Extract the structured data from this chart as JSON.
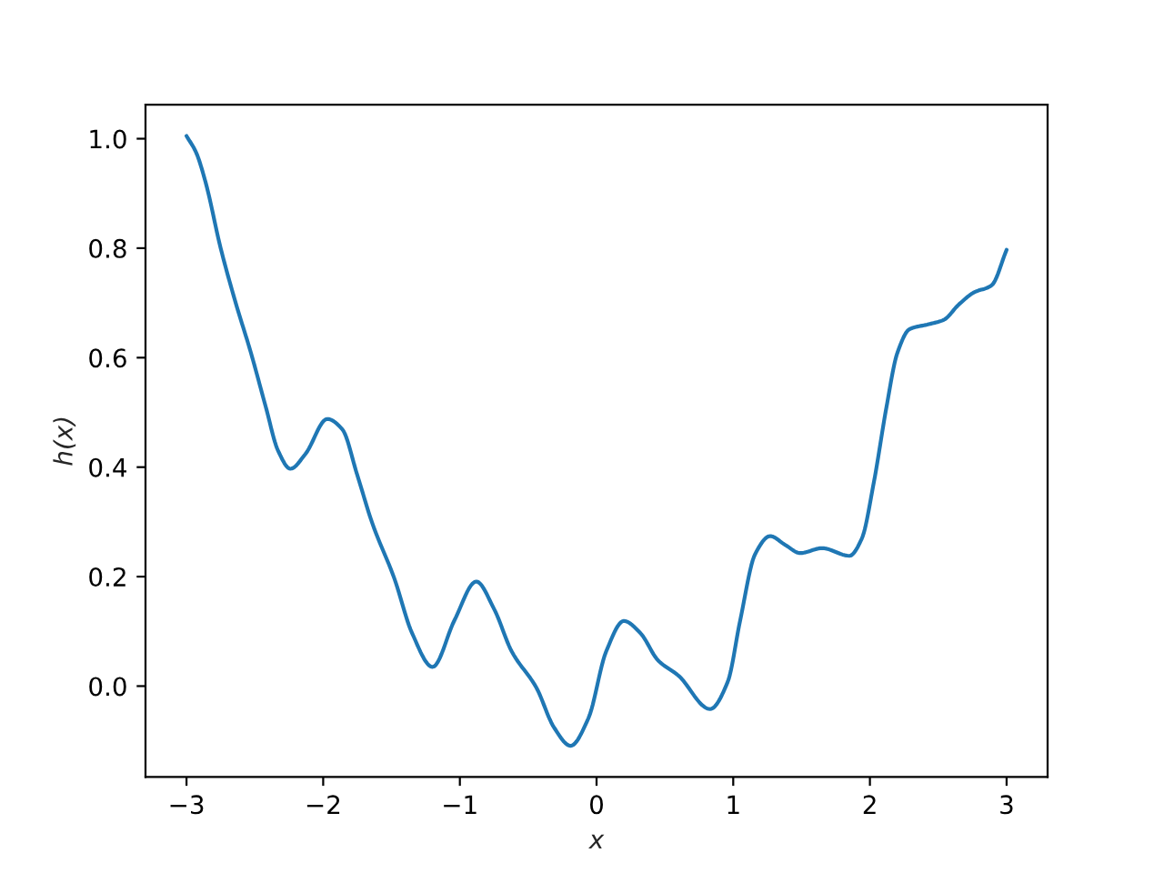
{
  "chart_data": {
    "type": "line",
    "xlabel": "x",
    "ylabel": "h(x)",
    "series": [
      {
        "color": "#1f77b4",
        "x": [
          -3.0,
          -2.93,
          -2.86,
          -2.75,
          -2.64,
          -2.53,
          -2.42,
          -2.33,
          -2.24,
          -2.13,
          -1.97,
          -1.86,
          -1.75,
          -1.64,
          -1.48,
          -1.35,
          -1.2,
          -1.04,
          -0.88,
          -0.75,
          -0.62,
          -0.44,
          -0.31,
          -0.19,
          -0.06,
          0.07,
          0.2,
          0.32,
          0.45,
          0.6,
          0.83,
          0.96,
          1.05,
          1.16,
          1.27,
          1.38,
          1.49,
          1.65,
          1.85,
          1.94,
          2.03,
          2.12,
          2.2,
          2.29,
          2.43,
          2.54,
          2.65,
          2.76,
          2.89,
          3.0
        ],
        "values": [
          1.005,
          0.975,
          0.92,
          0.8,
          0.7,
          0.61,
          0.51,
          0.43,
          0.397,
          0.424,
          0.488,
          0.469,
          0.385,
          0.297,
          0.197,
          0.097,
          0.035,
          0.12,
          0.191,
          0.141,
          0.063,
          -0.003,
          -0.076,
          -0.109,
          -0.059,
          0.063,
          0.119,
          0.097,
          0.047,
          0.019,
          -0.042,
          0.008,
          0.119,
          0.241,
          0.274,
          0.258,
          0.243,
          0.252,
          0.238,
          0.269,
          0.374,
          0.508,
          0.608,
          0.652,
          0.661,
          0.669,
          0.697,
          0.719,
          0.732,
          0.797
        ]
      }
    ],
    "xlim": [
      -3.3,
      3.3
    ],
    "ylim": [
      -0.166,
      1.062
    ],
    "xticks": [
      {
        "value": -3,
        "label": "−3"
      },
      {
        "value": -2,
        "label": "−2"
      },
      {
        "value": -1,
        "label": "−1"
      },
      0,
      1,
      2,
      3
    ],
    "yticks": [
      {
        "value": 0,
        "label": "0.0"
      },
      0.2,
      0.4,
      0.6,
      0.8,
      {
        "value": 1,
        "label": "1.0"
      }
    ],
    "grid": false,
    "line_style": "solid",
    "marker": "none"
  }
}
